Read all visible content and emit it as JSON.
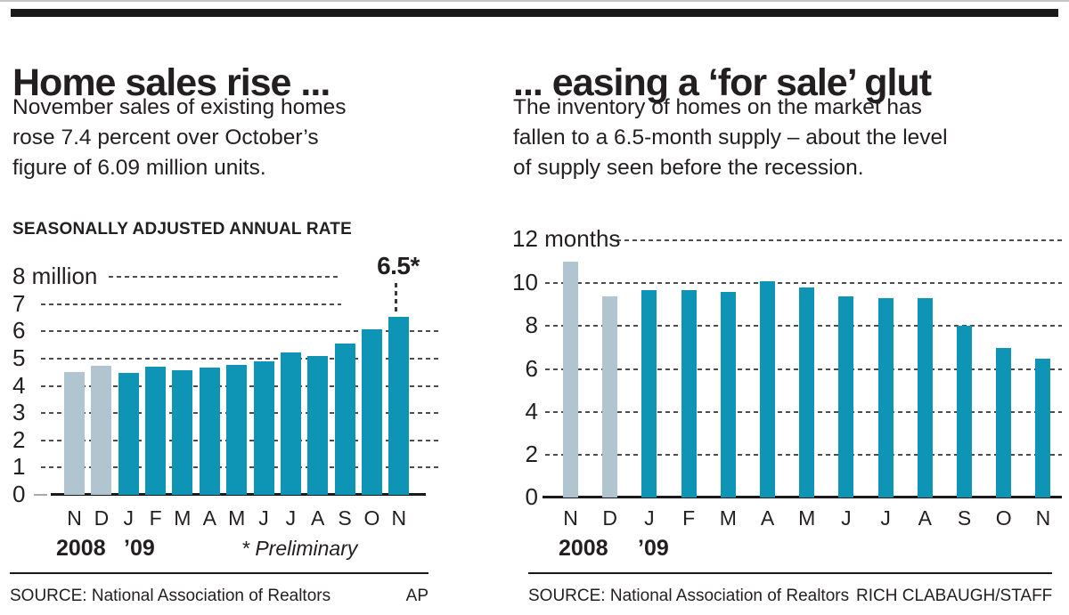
{
  "palette": {
    "bar_teal": "#0e94b4",
    "bar_prior_gray": "#b0c5cf",
    "text": "#231f20",
    "grid_dash": "#4d4d4d",
    "rule_black": "#1a1a1a"
  },
  "chart_data": [
    {
      "type": "bar",
      "title": "Home sales rise ...",
      "subtitle_lines": [
        "November sales of existing homes",
        "rose 7.4 percent over October’s",
        "figure of 6.09 million units."
      ],
      "kicker": "SEASONALLY ADJUSTED ANNUAL RATE",
      "categories": [
        "N",
        "D",
        "J",
        "F",
        "M",
        "A",
        "M",
        "J",
        "J",
        "A",
        "S",
        "O",
        "N"
      ],
      "values": [
        4.5,
        4.74,
        4.49,
        4.72,
        4.57,
        4.68,
        4.77,
        4.89,
        5.24,
        5.1,
        5.57,
        6.09,
        6.54
      ],
      "prior_year_bar_count": 2,
      "year_labels": [
        "2008",
        "’09"
      ],
      "y_ticks": [
        {
          "value": 8,
          "label": "8 million"
        },
        {
          "value": 7,
          "label": "7"
        },
        {
          "value": 6,
          "label": "6"
        },
        {
          "value": 5,
          "label": "5"
        },
        {
          "value": 4,
          "label": "4"
        },
        {
          "value": 3,
          "label": "3"
        },
        {
          "value": 2,
          "label": "2"
        },
        {
          "value": 1,
          "label": "1"
        },
        {
          "value": 0,
          "label": "0"
        }
      ],
      "ylim": [
        0,
        8
      ],
      "grid": "dashed-horizontal",
      "annotation": {
        "text": "6.5*",
        "points_to": "November 2009 bar"
      },
      "footnote": "* Preliminary",
      "source": "SOURCE: National Association of Realtors",
      "credit": "AP"
    },
    {
      "type": "bar",
      "title": "... easing a ‘for sale’ glut",
      "subtitle_lines": [
        "The inventory of homes on the market has",
        "fallen to a 6.5-month supply – about the level",
        "of supply seen before the recession."
      ],
      "categories": [
        "N",
        "D",
        "J",
        "F",
        "M",
        "A",
        "M",
        "J",
        "J",
        "A",
        "S",
        "O",
        "N"
      ],
      "values": [
        11.0,
        9.4,
        9.7,
        9.7,
        9.6,
        10.1,
        9.8,
        9.4,
        9.3,
        9.3,
        8.0,
        7.0,
        6.5
      ],
      "prior_year_bar_count": 2,
      "year_labels": [
        "2008",
        "’09"
      ],
      "y_ticks": [
        {
          "value": 12,
          "label": "12 months"
        },
        {
          "value": 10,
          "label": "10"
        },
        {
          "value": 8,
          "label": "8"
        },
        {
          "value": 6,
          "label": "6"
        },
        {
          "value": 4,
          "label": "4"
        },
        {
          "value": 2,
          "label": "2"
        },
        {
          "value": 0,
          "label": "0"
        }
      ],
      "ylim": [
        0,
        12
      ],
      "grid": "dashed-horizontal",
      "source": "SOURCE: National Association of Realtors",
      "credit": "RICH CLABAUGH/STAFF"
    }
  ]
}
